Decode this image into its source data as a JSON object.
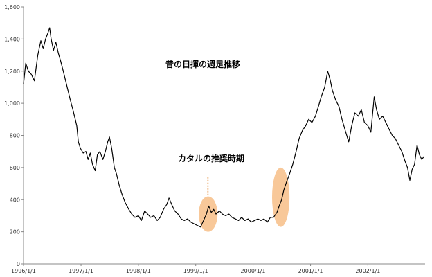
{
  "chart_data": {
    "type": "line",
    "title": "",
    "xlabel": "",
    "ylabel": "",
    "ylim": [
      0,
      1600
    ],
    "xlim": [
      "1996/1/1",
      "2002/12/31"
    ],
    "y_ticks": [
      0,
      200,
      400,
      600,
      800,
      1000,
      1200,
      1400,
      1600
    ],
    "y_tick_labels": [
      "0",
      "200",
      "400",
      "600",
      "800",
      "1,000",
      "1,200",
      "1,400",
      "1,600"
    ],
    "x_ticks": [
      "1996/1/1",
      "1997/1/1",
      "1998/1/1",
      "1999/1/1",
      "2000/1/1",
      "2001/1/1",
      "2002/1/1"
    ],
    "x_tick_labels": [
      "1996/1/1",
      "1997/1/1",
      "1998/1/1",
      "1999/1/1",
      "2000/1/1",
      "2001/1/1",
      "2002/1/1"
    ],
    "grid": false,
    "legend": "none",
    "series": [
      {
        "color": "#000000",
        "points": [
          [
            "1996/01/01",
            1120
          ],
          [
            "1996/01/15",
            1250
          ],
          [
            "1996/02/01",
            1200
          ],
          [
            "1996/02/20",
            1180
          ],
          [
            "1996/03/10",
            1140
          ],
          [
            "1996/04/01",
            1300
          ],
          [
            "1996/04/20",
            1390
          ],
          [
            "1996/05/05",
            1340
          ],
          [
            "1996/05/20",
            1400
          ],
          [
            "1996/06/05",
            1440
          ],
          [
            "1996/06/15",
            1470
          ],
          [
            "1996/06/25",
            1400
          ],
          [
            "1996/07/10",
            1330
          ],
          [
            "1996/07/25",
            1380
          ],
          [
            "1996/08/10",
            1310
          ],
          [
            "1996/08/25",
            1260
          ],
          [
            "1996/09/10",
            1200
          ],
          [
            "1996/09/25",
            1140
          ],
          [
            "1996/10/10",
            1080
          ],
          [
            "1996/10/25",
            1020
          ],
          [
            "1996/11/10",
            960
          ],
          [
            "1996/11/25",
            900
          ],
          [
            "1996/12/05",
            860
          ],
          [
            "1996/12/15",
            760
          ],
          [
            "1996/12/28",
            720
          ],
          [
            "1997/01/15",
            690
          ],
          [
            "1997/02/01",
            700
          ],
          [
            "1997/02/15",
            650
          ],
          [
            "1997/03/01",
            690
          ],
          [
            "1997/03/15",
            620
          ],
          [
            "1997/04/01",
            580
          ],
          [
            "1997/04/15",
            680
          ],
          [
            "1997/05/01",
            700
          ],
          [
            "1997/05/20",
            650
          ],
          [
            "1997/06/05",
            700
          ],
          [
            "1997/06/20",
            760
          ],
          [
            "1997/07/01",
            790
          ],
          [
            "1997/07/15",
            720
          ],
          [
            "1997/08/01",
            600
          ],
          [
            "1997/08/15",
            560
          ],
          [
            "1997/09/01",
            490
          ],
          [
            "1997/09/20",
            430
          ],
          [
            "1997/10/10",
            380
          ],
          [
            "1997/11/01",
            340
          ],
          [
            "1997/11/20",
            310
          ],
          [
            "1997/12/10",
            290
          ],
          [
            "1998/01/01",
            300
          ],
          [
            "1998/01/20",
            270
          ],
          [
            "1998/02/10",
            330
          ],
          [
            "1998/03/01",
            310
          ],
          [
            "1998/03/20",
            290
          ],
          [
            "1998/04/10",
            300
          ],
          [
            "1998/05/01",
            270
          ],
          [
            "1998/05/20",
            290
          ],
          [
            "1998/06/10",
            340
          ],
          [
            "1998/07/01",
            370
          ],
          [
            "1998/07/15",
            410
          ],
          [
            "1998/08/01",
            370
          ],
          [
            "1998/08/20",
            330
          ],
          [
            "1998/09/10",
            310
          ],
          [
            "1998/10/01",
            280
          ],
          [
            "1998/10/20",
            270
          ],
          [
            "1998/11/10",
            280
          ],
          [
            "1998/12/01",
            260
          ],
          [
            "1998/12/20",
            250
          ],
          [
            "1999/01/10",
            240
          ],
          [
            "1999/02/01",
            230
          ],
          [
            "1999/02/20",
            270
          ],
          [
            "1999/03/10",
            310
          ],
          [
            "1999/03/25",
            360
          ],
          [
            "1999/04/10",
            320
          ],
          [
            "1999/04/25",
            340
          ],
          [
            "1999/05/10",
            310
          ],
          [
            "1999/06/01",
            330
          ],
          [
            "1999/06/20",
            310
          ],
          [
            "1999/07/10",
            300
          ],
          [
            "1999/08/01",
            310
          ],
          [
            "1999/08/20",
            290
          ],
          [
            "1999/09/10",
            280
          ],
          [
            "1999/10/01",
            270
          ],
          [
            "1999/10/20",
            290
          ],
          [
            "1999/11/10",
            270
          ],
          [
            "1999/12/01",
            280
          ],
          [
            "1999/12/20",
            260
          ],
          [
            "2000/01/10",
            270
          ],
          [
            "2000/02/01",
            280
          ],
          [
            "2000/02/20",
            270
          ],
          [
            "2000/03/10",
            280
          ],
          [
            "2000/04/01",
            260
          ],
          [
            "2000/04/20",
            290
          ],
          [
            "2000/05/10",
            290
          ],
          [
            "2000/06/01",
            320
          ],
          [
            "2000/06/15",
            360
          ],
          [
            "2000/07/01",
            400
          ],
          [
            "2000/07/15",
            460
          ],
          [
            "2000/08/01",
            510
          ],
          [
            "2000/08/20",
            560
          ],
          [
            "2000/09/10",
            620
          ],
          [
            "2000/10/01",
            700
          ],
          [
            "2000/10/20",
            780
          ],
          [
            "2000/11/10",
            830
          ],
          [
            "2000/12/01",
            860
          ],
          [
            "2000/12/20",
            900
          ],
          [
            "2001/01/10",
            880
          ],
          [
            "2001/02/01",
            920
          ],
          [
            "2001/02/20",
            980
          ],
          [
            "2001/03/10",
            1040
          ],
          [
            "2001/04/01",
            1100
          ],
          [
            "2001/04/20",
            1200
          ],
          [
            "2001/05/05",
            1150
          ],
          [
            "2001/05/20",
            1080
          ],
          [
            "2001/06/10",
            1020
          ],
          [
            "2001/07/01",
            980
          ],
          [
            "2001/07/20",
            900
          ],
          [
            "2001/08/10",
            830
          ],
          [
            "2001/09/01",
            760
          ],
          [
            "2001/09/20",
            860
          ],
          [
            "2001/10/10",
            940
          ],
          [
            "2001/11/01",
            920
          ],
          [
            "2001/11/20",
            960
          ],
          [
            "2001/12/10",
            880
          ],
          [
            "2002/01/01",
            860
          ],
          [
            "2002/01/20",
            820
          ],
          [
            "2002/02/10",
            1040
          ],
          [
            "2002/02/25",
            960
          ],
          [
            "2002/03/15",
            900
          ],
          [
            "2002/04/05",
            920
          ],
          [
            "2002/04/25",
            880
          ],
          [
            "2002/05/15",
            840
          ],
          [
            "2002/06/05",
            800
          ],
          [
            "2002/06/25",
            780
          ],
          [
            "2002/07/15",
            740
          ],
          [
            "2002/08/05",
            700
          ],
          [
            "2002/08/25",
            640
          ],
          [
            "2002/09/10",
            600
          ],
          [
            "2002/09/25",
            520
          ],
          [
            "2002/10/10",
            590
          ],
          [
            "2002/10/25",
            620
          ],
          [
            "2002/11/10",
            740
          ],
          [
            "2002/11/25",
            680
          ],
          [
            "2002/12/10",
            650
          ],
          [
            "2002/12/25",
            670
          ]
        ]
      }
    ],
    "annotations": [
      {
        "text": "昔の日揮の週足推移",
        "color": "#f28c28"
      },
      {
        "text": "カタルの推奨時期",
        "color": "#f28c28"
      }
    ],
    "highlights": [
      {
        "start": "1999/01/20",
        "end": "1999/05/20",
        "low": 200,
        "high": 420,
        "color": "#f5b577"
      },
      {
        "start": "2000/05/01",
        "end": "2000/08/20",
        "low": 230,
        "high": 600,
        "color": "#f5b577"
      }
    ],
    "leader": {
      "date": "1999/03/20",
      "from_value": 540,
      "to_value": 420,
      "color": "#e07a1a"
    }
  }
}
